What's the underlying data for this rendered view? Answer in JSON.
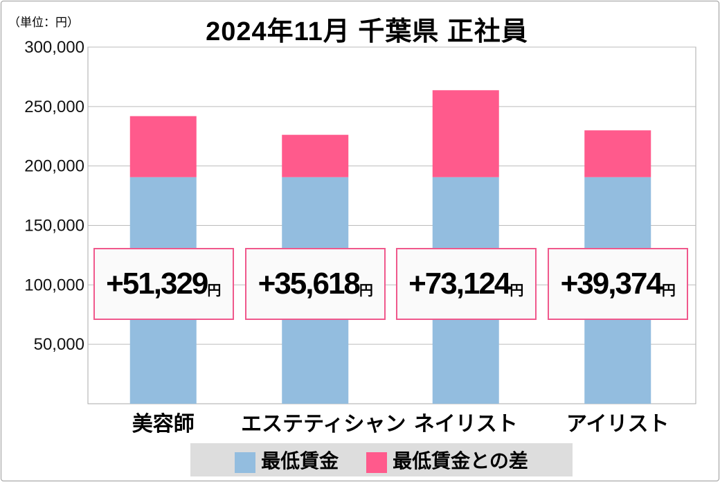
{
  "unit_label": "（単位：円）",
  "title": "2024年11月 千葉県 正社員",
  "colors": {
    "base": "#93bddf",
    "diff": "#ff5a8c",
    "label_border": "#f0588c"
  },
  "chart_data": {
    "type": "bar",
    "stacked": true,
    "title": "2024年11月 千葉県 正社員",
    "categories": [
      "美容師",
      "エステティシャン",
      "ネイリスト",
      "アイリスト"
    ],
    "series": [
      {
        "name": "最低賃金",
        "values": [
          190600,
          190600,
          190600,
          190600
        ]
      },
      {
        "name": "最低賃金との差",
        "values": [
          51329,
          35618,
          73124,
          39374
        ]
      }
    ],
    "data_labels": [
      "+51,329",
      "+35,618",
      "+73,124",
      "+39,374"
    ],
    "data_label_unit": "円",
    "ylim": [
      0,
      300000
    ],
    "yticks": [
      "50,000",
      "100,000",
      "150,000",
      "200,000",
      "250,000",
      "300,000"
    ],
    "ytick_values": [
      50000,
      100000,
      150000,
      200000,
      250000,
      300000
    ],
    "grid": true,
    "legend_position": "bottom"
  }
}
